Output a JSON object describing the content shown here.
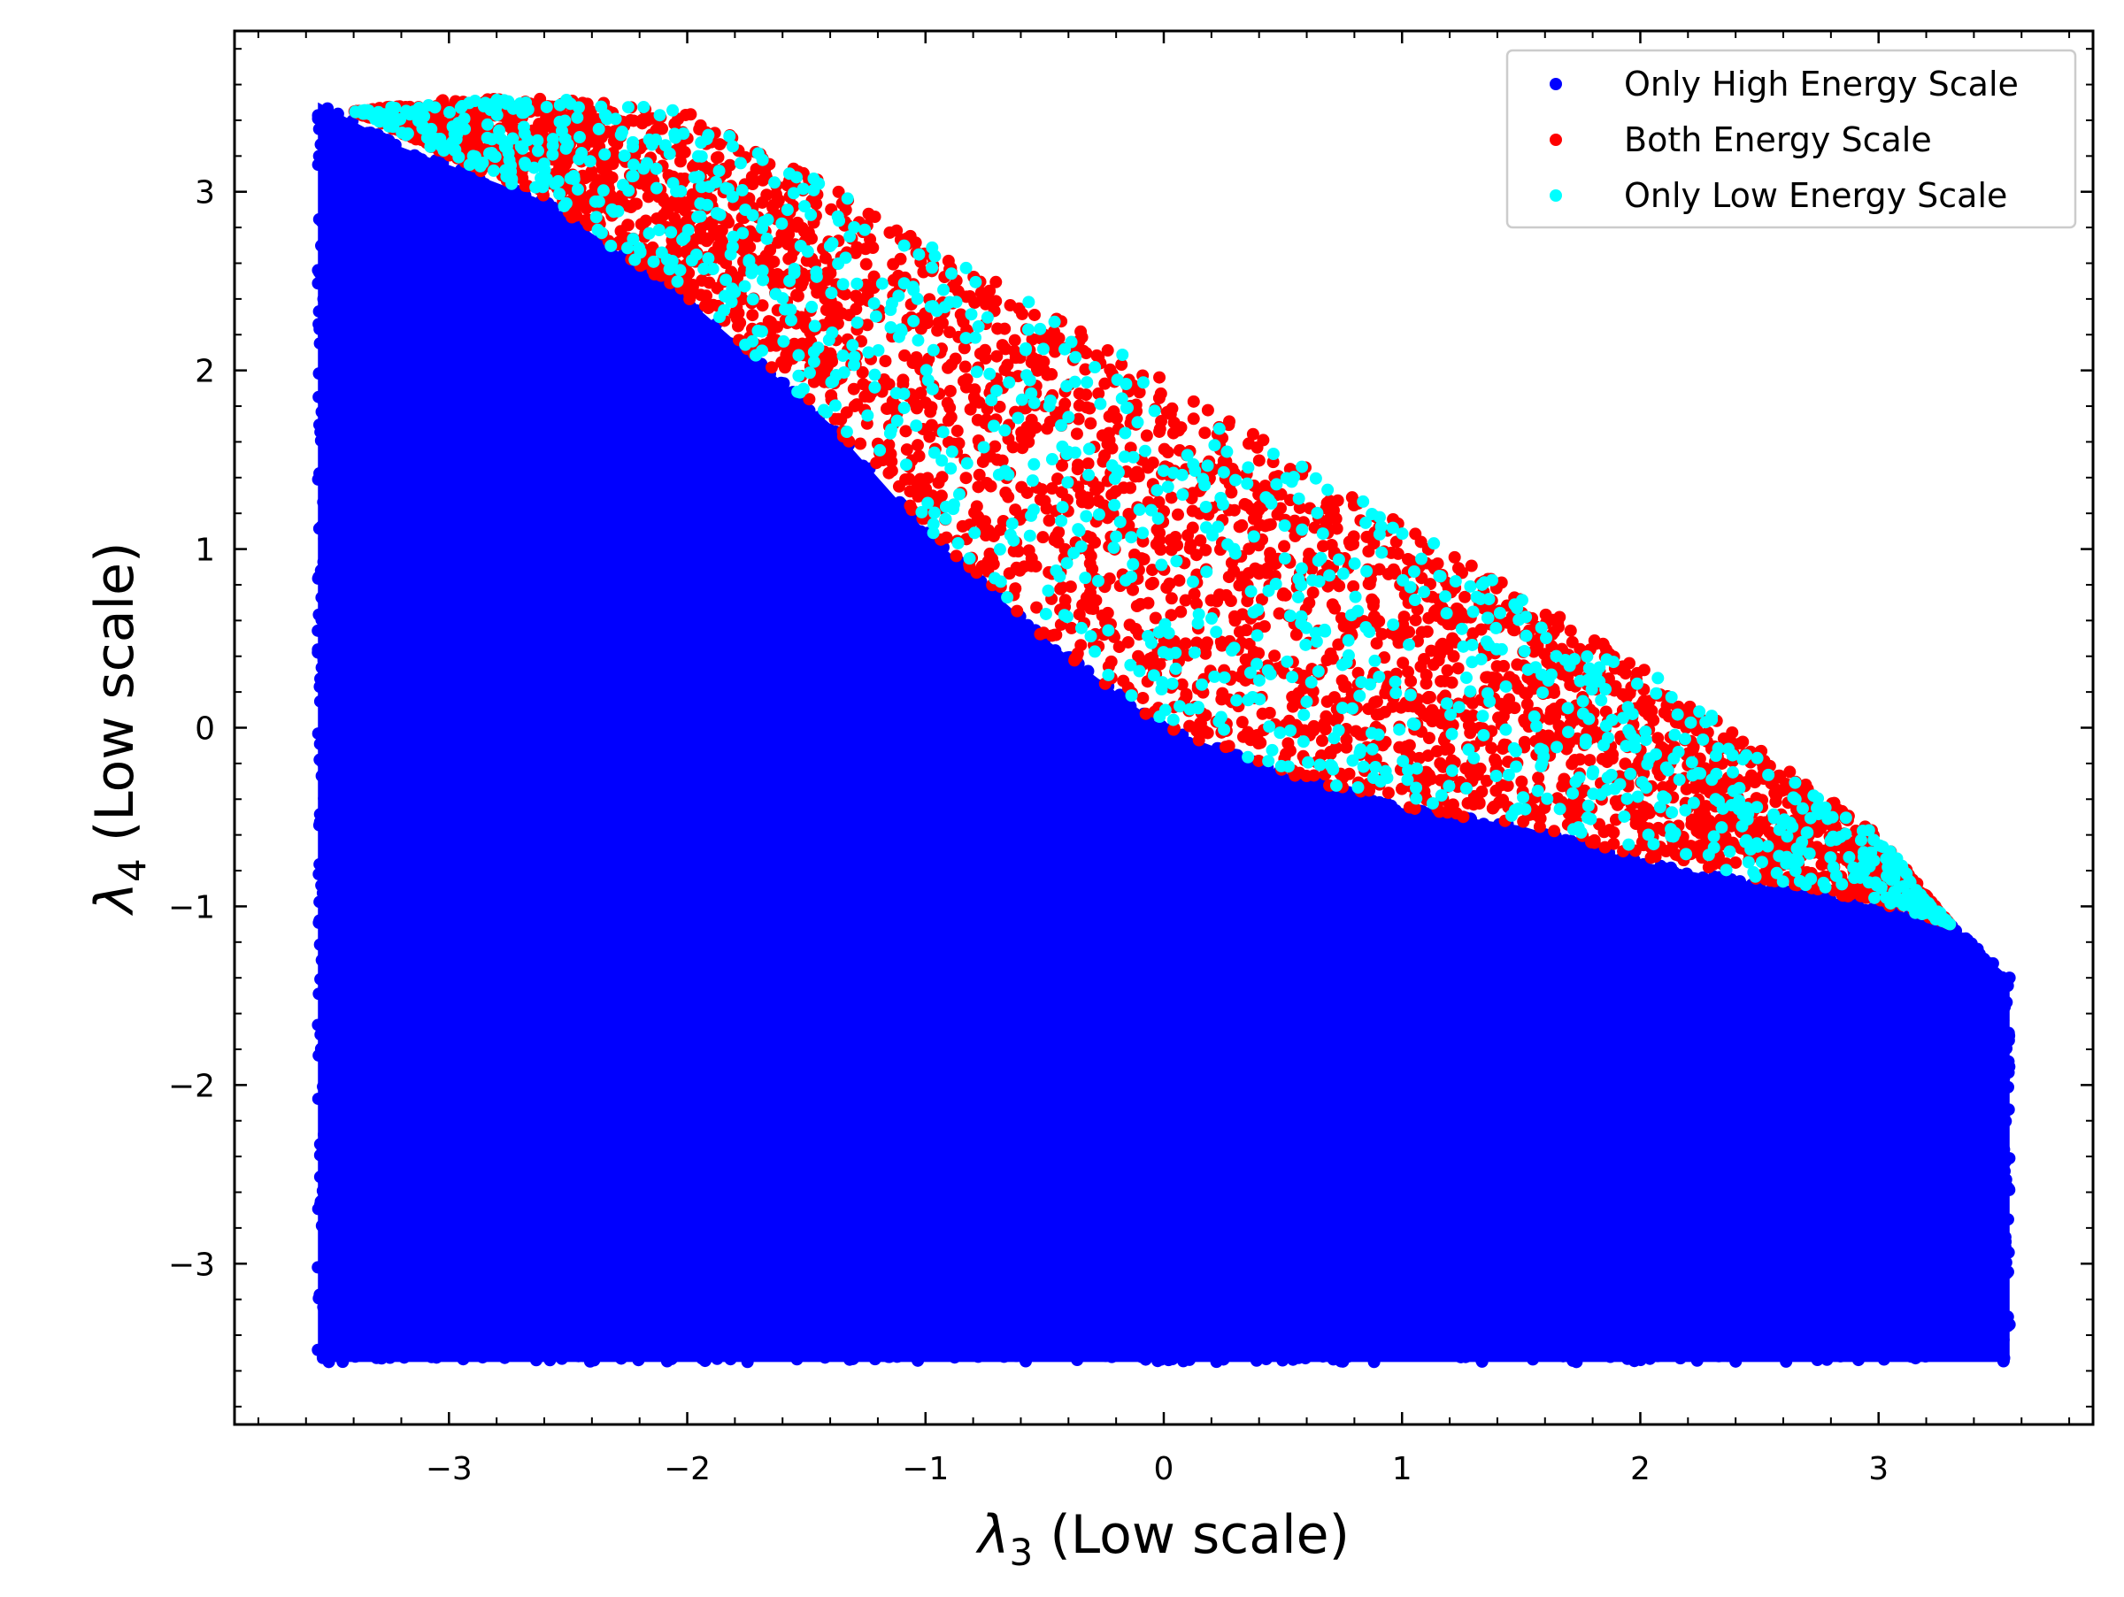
{
  "chart_data": {
    "type": "scatter",
    "title": "",
    "xlabel": "λ3 (Low scale)",
    "ylabel": "λ4 (Low scale)",
    "xlabel_parts": {
      "symbol": "λ",
      "sub": "3",
      "rest": " (Low scale)"
    },
    "ylabel_parts": {
      "symbol": "λ",
      "sub": "4",
      "rest": " (Low scale)"
    },
    "xlim": [
      -3.9,
      3.9
    ],
    "ylim": [
      -3.9,
      3.9
    ],
    "xticks": [
      -3,
      -2,
      -1,
      0,
      1,
      2,
      3
    ],
    "xtick_labels": [
      "−3",
      "−2",
      "−1",
      "0",
      "1",
      "2",
      "3"
    ],
    "yticks": [
      -3,
      -2,
      -1,
      0,
      1,
      2,
      3
    ],
    "ytick_labels": [
      "−3",
      "−2",
      "−1",
      "0",
      "1",
      "2",
      "3"
    ],
    "grid": false,
    "legend_position": "top-right",
    "series": [
      {
        "name": "Only High Energy Scale",
        "color": "#0000ff",
        "region": {
          "x_range": [
            -3.55,
            3.55
          ],
          "lower_y": -3.55,
          "upper_boundary": [
            [
              -3.55,
              3.5
            ],
            [
              -3.2,
              3.25
            ],
            [
              -2.6,
              2.95
            ],
            [
              -2.0,
              2.4
            ],
            [
              -1.4,
              1.7
            ],
            [
              -1.0,
              1.1
            ],
            [
              -0.5,
              0.5
            ],
            [
              0.0,
              0.0
            ],
            [
              0.5,
              -0.25
            ],
            [
              1.0,
              -0.45
            ],
            [
              1.5,
              -0.55
            ],
            [
              2.0,
              -0.75
            ],
            [
              2.5,
              -0.88
            ],
            [
              3.0,
              -1.0
            ],
            [
              3.3,
              -1.1
            ],
            [
              3.55,
              -1.4
            ]
          ]
        }
      },
      {
        "name": "Both Energy Scale",
        "color": "#ff0000",
        "region": {
          "lower_boundary": [
            [
              -3.4,
              3.45
            ],
            [
              -2.6,
              2.95
            ],
            [
              -2.0,
              2.4
            ],
            [
              -1.4,
              1.7
            ],
            [
              -1.0,
              1.1
            ],
            [
              -0.5,
              0.5
            ],
            [
              0.0,
              0.0
            ],
            [
              0.5,
              -0.25
            ],
            [
              1.0,
              -0.45
            ],
            [
              1.5,
              -0.55
            ],
            [
              2.0,
              -0.72
            ],
            [
              2.5,
              -0.85
            ],
            [
              3.0,
              -0.98
            ],
            [
              3.3,
              -1.1
            ]
          ],
          "upper_boundary": [
            [
              -3.4,
              3.45
            ],
            [
              -3.0,
              3.52
            ],
            [
              -2.5,
              3.52
            ],
            [
              -2.0,
              3.45
            ],
            [
              -1.5,
              3.1
            ],
            [
              -1.0,
              2.75
            ],
            [
              -0.5,
              2.35
            ],
            [
              0.0,
              1.95
            ],
            [
              0.5,
              1.55
            ],
            [
              1.0,
              1.15
            ],
            [
              1.5,
              0.75
            ],
            [
              2.0,
              0.35
            ],
            [
              2.5,
              -0.12
            ],
            [
              3.0,
              -0.6
            ],
            [
              3.3,
              -1.1
            ]
          ]
        }
      },
      {
        "name": "Only Low Energy Scale",
        "color": "#00ffff",
        "region": {
          "within_series": "Both Energy Scale"
        }
      }
    ]
  }
}
